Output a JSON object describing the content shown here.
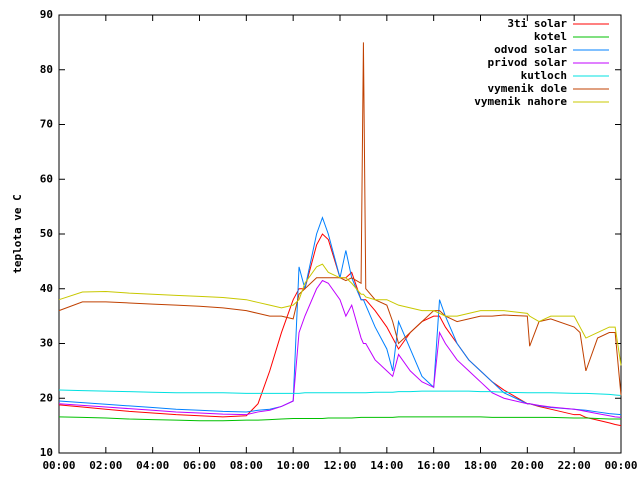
{
  "chart_data": {
    "type": "line",
    "ylabel": "teplota ve C",
    "x": [
      0,
      1,
      2,
      3,
      4,
      5,
      6,
      7,
      8,
      8.5,
      9,
      9.5,
      10,
      10.25,
      10.5,
      11,
      11.25,
      11.5,
      12,
      12.25,
      12.5,
      12.9,
      13,
      13.1,
      13.5,
      14,
      14.25,
      14.5,
      15,
      15.5,
      16,
      16.25,
      16.5,
      17,
      17.5,
      18,
      18.5,
      19,
      20,
      20.1,
      20.5,
      21,
      22,
      22.25,
      22.5,
      23,
      23.5,
      23.75,
      24
    ],
    "xlim": [
      0,
      24
    ],
    "xticks": [
      {
        "value": 0,
        "label": "00:00"
      },
      {
        "value": 2,
        "label": "02:00"
      },
      {
        "value": 4,
        "label": "04:00"
      },
      {
        "value": 6,
        "label": "06:00"
      },
      {
        "value": 8,
        "label": "08:00"
      },
      {
        "value": 10,
        "label": "10:00"
      },
      {
        "value": 12,
        "label": "12:00"
      },
      {
        "value": 14,
        "label": "14:00"
      },
      {
        "value": 16,
        "label": "16:00"
      },
      {
        "value": 18,
        "label": "18:00"
      },
      {
        "value": 20,
        "label": "20:00"
      },
      {
        "value": 22,
        "label": "22:00"
      },
      {
        "value": 24,
        "label": "00:00"
      }
    ],
    "ylim": [
      10,
      90
    ],
    "yticks": [
      10,
      20,
      30,
      40,
      50,
      60,
      70,
      80,
      90
    ],
    "legend": "top-right",
    "series": [
      {
        "name": "3ti solar",
        "color": "#ff0000",
        "values": [
          18.8,
          18.4,
          18,
          17.6,
          17.3,
          17,
          16.8,
          16.6,
          16.8,
          19,
          25,
          32,
          38,
          40,
          40,
          48,
          50,
          49,
          42,
          42,
          43,
          38,
          38,
          38,
          36,
          33,
          31,
          29,
          32,
          34,
          35,
          35,
          33,
          30,
          27,
          25,
          23,
          21.5,
          19,
          19,
          18.5,
          18,
          17,
          17,
          16.5,
          16,
          15.5,
          15.2,
          15
        ]
      },
      {
        "name": "kotel",
        "color": "#00c000",
        "values": [
          16.6,
          16.5,
          16.4,
          16.2,
          16.1,
          16,
          15.9,
          15.9,
          16,
          16,
          16.1,
          16.2,
          16.3,
          16.3,
          16.3,
          16.3,
          16.3,
          16.4,
          16.4,
          16.4,
          16.4,
          16.5,
          16.5,
          16.5,
          16.5,
          16.5,
          16.5,
          16.6,
          16.6,
          16.6,
          16.6,
          16.6,
          16.6,
          16.6,
          16.6,
          16.6,
          16.5,
          16.5,
          16.5,
          16.5,
          16.5,
          16.5,
          16.4,
          16.4,
          16.4,
          16.3,
          16.2,
          16.2,
          16.2
        ]
      },
      {
        "name": "odvod solar",
        "color": "#0080ff",
        "values": [
          19.5,
          19.2,
          18.9,
          18.6,
          18.3,
          18,
          17.8,
          17.6,
          17.5,
          17.8,
          18,
          18.5,
          19.5,
          44,
          40,
          50,
          53,
          50,
          42,
          47,
          42,
          38,
          38,
          37,
          33,
          29,
          25,
          34,
          29,
          24,
          22,
          38,
          35,
          30,
          27,
          25,
          23,
          21,
          19,
          19,
          18.6,
          18.3,
          18,
          17.9,
          17.8,
          17.5,
          17.2,
          17.1,
          17
        ]
      },
      {
        "name": "privod solar",
        "color": "#c000ff",
        "values": [
          19,
          18.7,
          18.4,
          18.1,
          17.8,
          17.5,
          17.3,
          17.1,
          17,
          17.5,
          17.8,
          18.5,
          19.5,
          32,
          35,
          40,
          41.5,
          41,
          38,
          35,
          37,
          31,
          30,
          30,
          27,
          25,
          24,
          28,
          25,
          23,
          22,
          32,
          30,
          27,
          25,
          23,
          21,
          20,
          19,
          19,
          18.7,
          18.4,
          18,
          17.8,
          17.6,
          17.2,
          16.8,
          16.6,
          16.5
        ]
      },
      {
        "name": "kutloch",
        "color": "#00e0e0",
        "values": [
          21.5,
          21.4,
          21.3,
          21.2,
          21.1,
          21,
          21,
          21,
          20.9,
          20.9,
          20.9,
          20.9,
          20.9,
          20.9,
          21,
          21,
          21,
          21,
          21,
          21,
          21,
          21,
          21,
          21,
          21.1,
          21.1,
          21.1,
          21.2,
          21.2,
          21.3,
          21.3,
          21.3,
          21.3,
          21.3,
          21.3,
          21.2,
          21.2,
          21.1,
          21,
          21,
          21,
          21,
          20.9,
          20.9,
          20.9,
          20.8,
          20.7,
          20.6,
          20.5
        ]
      },
      {
        "name": "vymenik dole",
        "color": "#c04000",
        "values": [
          36,
          37.6,
          37.6,
          37.4,
          37.2,
          37,
          36.8,
          36.5,
          36,
          35.5,
          35,
          35,
          34.5,
          39,
          40,
          42,
          42,
          42,
          42,
          41.5,
          42,
          41,
          85,
          40,
          38,
          37,
          34,
          30,
          32,
          34,
          36,
          36,
          35,
          34,
          34.5,
          35,
          35,
          35.2,
          35,
          29.5,
          34,
          34.5,
          33,
          32,
          25,
          31,
          32,
          32,
          20.5
        ]
      },
      {
        "name": "vymenik nahore",
        "color": "#c8c800",
        "values": [
          38,
          39.4,
          39.5,
          39.2,
          39,
          38.8,
          38.6,
          38.4,
          38,
          37.5,
          37,
          36.5,
          37,
          38,
          41,
          44,
          44.5,
          43,
          42,
          42,
          41,
          39,
          39,
          38.5,
          38,
          38,
          37.5,
          37,
          36.5,
          36,
          36,
          35.5,
          35,
          35,
          35.5,
          36,
          36,
          36,
          35.5,
          35,
          34,
          35,
          35,
          33,
          31,
          32,
          33,
          33,
          26
        ]
      }
    ]
  }
}
